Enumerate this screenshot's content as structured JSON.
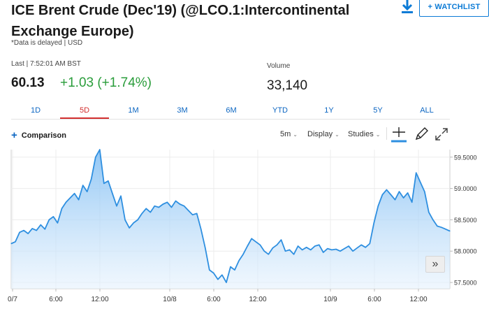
{
  "header": {
    "title": "ICE Brent Crude (Dec'19) (@LCO.1:Intercontinental Exchange Europe)",
    "watchlist_label": "+ WATCHLIST",
    "delayed_note": "*Data is delayed | USD"
  },
  "quote": {
    "last_label": "Last | 7:52:01 AM BST",
    "last_price": "60.13",
    "change": "+1.03 (+1.74%)",
    "volume_label": "Volume",
    "volume_value": "33,140"
  },
  "colors": {
    "accent_blue": "#0c66c2",
    "positive_green": "#2a9d3b",
    "active_tab_red": "#d32f2f",
    "line_blue": "#2e8fe0"
  },
  "range_tabs": [
    "1D",
    "5D",
    "1M",
    "3M",
    "6M",
    "YTD",
    "1Y",
    "5Y",
    "ALL"
  ],
  "active_range": "5D",
  "toolbar": {
    "comparison_label": "Comparison",
    "interval_label": "5m",
    "display_label": "Display",
    "studies_label": "Studies",
    "icons": [
      "crosshair-icon",
      "draw-pencil-icon",
      "fullscreen-icon"
    ]
  },
  "pan_icon": "double-chevron-right-icon",
  "chart_data": {
    "type": "area",
    "title": "",
    "x_tick_labels": [
      "0/7",
      "6:00",
      "12:00",
      "10/8",
      "6:00",
      "12:00",
      "10/9",
      "6:00",
      "12:00"
    ],
    "y_tick_labels": [
      "59.5000",
      "59.0000",
      "58.5000",
      "58.0000",
      "57.5000"
    ],
    "ylim": [
      57.4,
      59.62
    ],
    "grid": true,
    "series": [
      {
        "values": [
          58.12,
          58.15,
          58.3,
          58.33,
          58.28,
          58.36,
          58.33,
          58.42,
          58.35,
          58.5,
          58.55,
          58.45,
          58.68,
          58.78,
          58.85,
          58.92,
          58.82,
          59.05,
          58.95,
          59.15,
          59.5,
          59.62,
          59.08,
          59.12,
          58.92,
          58.72,
          58.88,
          58.5,
          58.37,
          58.45,
          58.5,
          58.6,
          58.68,
          58.62,
          58.72,
          58.7,
          58.75,
          58.78,
          58.7,
          58.8,
          58.75,
          58.72,
          58.65,
          58.58,
          58.6,
          58.35,
          58.05,
          57.7,
          57.65,
          57.55,
          57.62,
          57.5,
          57.75,
          57.7,
          57.85,
          57.95,
          58.08,
          58.2,
          58.15,
          58.1,
          58.0,
          57.95,
          58.05,
          58.1,
          58.18,
          58.0,
          58.02,
          57.95,
          58.08,
          58.02,
          58.06,
          58.02,
          58.08,
          58.1,
          57.98,
          58.04,
          58.02,
          58.03,
          58.0,
          58.04,
          58.08,
          58.0,
          58.05,
          58.1,
          58.06,
          58.12,
          58.45,
          58.72,
          58.9,
          58.98,
          58.9,
          58.82,
          58.95,
          58.85,
          58.93,
          58.78,
          59.25,
          59.1,
          58.95,
          58.62,
          58.5,
          58.4,
          58.38,
          58.35,
          58.32
        ]
      }
    ]
  }
}
